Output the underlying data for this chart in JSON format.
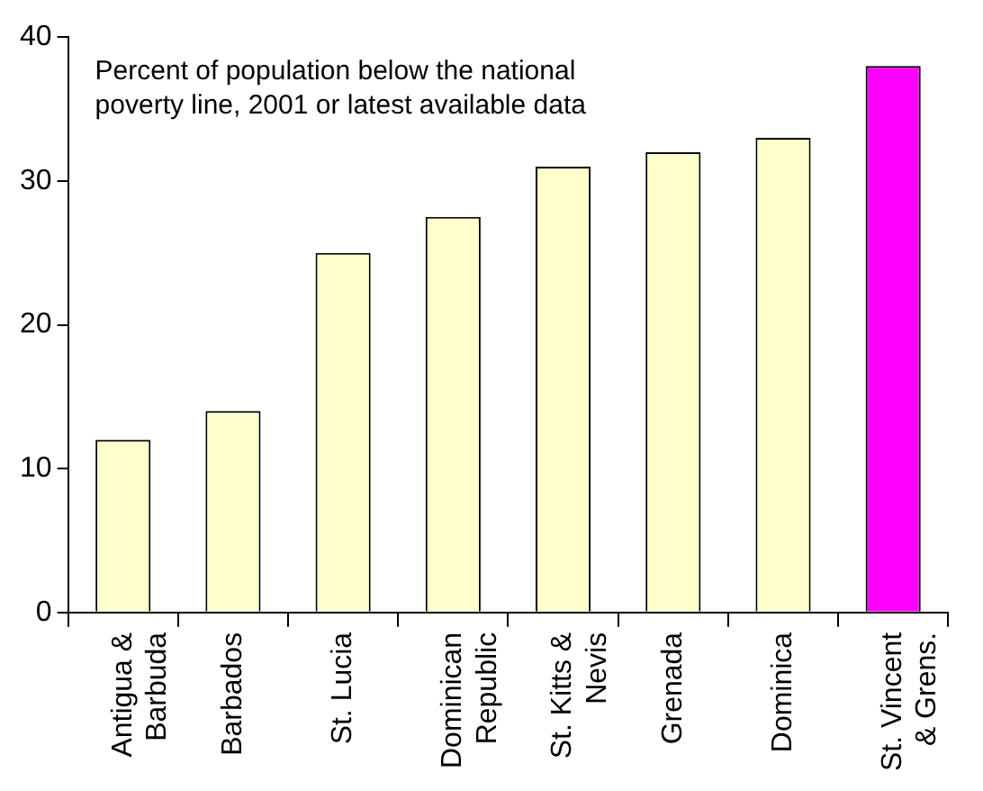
{
  "chart_data": {
    "type": "bar",
    "title": "Percent of population below the national poverty line, 2001 or latest available data",
    "categories": [
      "Antigua & Barbuda",
      "Barbados",
      "St. Lucia",
      "Dominican Republic",
      "St. Kitts & Nevis",
      "Grenada",
      "Dominica",
      "St. Vincent & Grens."
    ],
    "values": [
      12,
      14,
      25,
      27.5,
      31,
      32,
      33,
      38
    ],
    "colors": [
      "#ffffcc",
      "#ffffcc",
      "#ffffcc",
      "#ffffcc",
      "#ffffcc",
      "#ffffcc",
      "#ffffcc",
      "#ff00ff"
    ],
    "ylim": [
      0,
      40
    ],
    "yticks": [
      0,
      10,
      20,
      30,
      40
    ],
    "grid": false,
    "legend": false
  }
}
